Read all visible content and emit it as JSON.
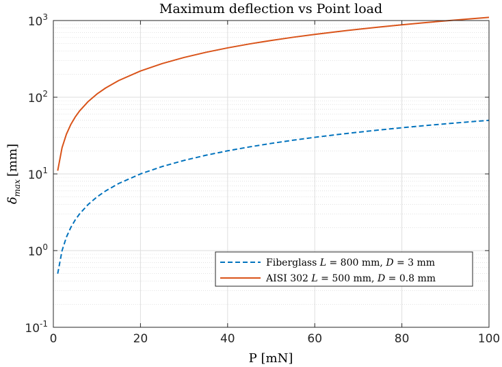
{
  "chart_data": {
    "type": "line",
    "title": "Maximum deflection vs Point load",
    "xlabel": "P [mN]",
    "ylabel": {
      "symbol": "δ",
      "subscript": "max",
      "unit": "[mm]"
    },
    "x_scale": "linear",
    "y_scale": "log",
    "xlim": [
      0,
      100
    ],
    "ylim": [
      0.1,
      1000
    ],
    "x_ticks": [
      0,
      20,
      40,
      60,
      80,
      100
    ],
    "x_tick_labels": [
      "0",
      "20",
      "40",
      "60",
      "80",
      "100"
    ],
    "y_ticks": [
      {
        "value": 0.1,
        "base": "10",
        "exp": "-1"
      },
      {
        "value": 1,
        "base": "10",
        "exp": "0"
      },
      {
        "value": 10,
        "base": "10",
        "exp": "1"
      },
      {
        "value": 100,
        "base": "10",
        "exp": "2"
      },
      {
        "value": 1000,
        "base": "10",
        "exp": "3"
      }
    ],
    "grid": true,
    "minor_grid": true,
    "legend_position": "lower-right",
    "series": [
      {
        "name_parts": [
          {
            "text": "Fiberglass ",
            "math": false
          },
          {
            "text": "L",
            "math": true
          },
          {
            "text": " = 800 mm, ",
            "math": false
          },
          {
            "text": "D",
            "math": true
          },
          {
            "text": " = 3 mm",
            "math": false
          }
        ],
        "color": "#0072BD",
        "line_style": "dashed",
        "x": [
          1,
          2,
          3,
          4,
          5,
          6,
          8,
          10,
          12,
          15,
          20,
          25,
          30,
          35,
          40,
          45,
          50,
          55,
          60,
          65,
          70,
          75,
          80,
          85,
          90,
          95,
          100
        ],
        "y": [
          0.5,
          1.0,
          1.5,
          2.0,
          2.5,
          3.0,
          4.0,
          5.0,
          6.0,
          7.5,
          10,
          12.5,
          15,
          17.5,
          20,
          22.5,
          25,
          27.5,
          30,
          32.5,
          35,
          37.5,
          40,
          42.5,
          45,
          47.5,
          50
        ]
      },
      {
        "name_parts": [
          {
            "text": "AISI 302 ",
            "math": false
          },
          {
            "text": "L",
            "math": true
          },
          {
            "text": " = 500 mm, ",
            "math": false
          },
          {
            "text": "D",
            "math": true
          },
          {
            "text": " = 0.8 mm",
            "math": false
          }
        ],
        "color": "#D95319",
        "line_style": "solid",
        "x": [
          1,
          2,
          3,
          4,
          5,
          6,
          8,
          10,
          12,
          15,
          20,
          25,
          30,
          35,
          40,
          45,
          50,
          55,
          60,
          65,
          70,
          75,
          80,
          85,
          90,
          95,
          100
        ],
        "y": [
          11,
          22,
          33,
          44,
          55,
          66,
          88,
          110,
          132,
          165,
          220,
          275,
          330,
          385,
          440,
          495,
          550,
          605,
          660,
          715,
          770,
          825,
          880,
          935,
          990,
          1045,
          1100
        ]
      }
    ]
  }
}
